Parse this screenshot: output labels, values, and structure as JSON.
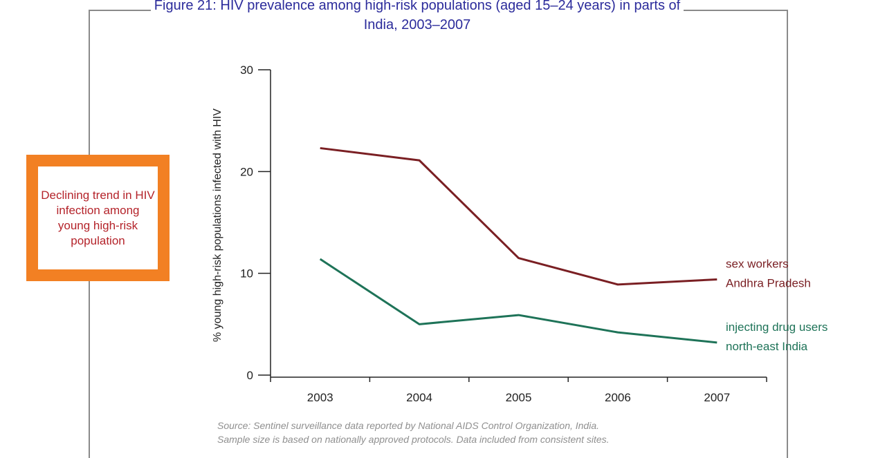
{
  "figure": {
    "title": "Figure 21: HIV prevalence among high-risk populations (aged 15–24 years) in parts of India, 2003–2007",
    "callout": "Declining trend in HIV infection among young high-risk population",
    "source_line1": "Source: Sentinel surveillance data reported by National AIDS Control Organization, India.",
    "source_line2": "Sample size is based on nationally approved protocols. Data included from consistent sites."
  },
  "chart_data": {
    "type": "line",
    "title": "Figure 21: HIV prevalence among high-risk populations (aged 15–24 years) in parts of India, 2003–2007",
    "xlabel": "",
    "ylabel": "% young high-risk populations infected with HIV",
    "ylim": [
      0,
      30
    ],
    "yticks": [
      0,
      10,
      20,
      30
    ],
    "categories": [
      "2003",
      "2004",
      "2005",
      "2006",
      "2007"
    ],
    "grid": false,
    "series": [
      {
        "label_line1": "sex workers",
        "label_line2": "Andhra Pradesh",
        "color": "#7a1f23",
        "values": [
          22.3,
          21.1,
          11.5,
          8.9,
          9.4
        ]
      },
      {
        "label_line1": "injecting drug users",
        "label_line2": "north-east India",
        "color": "#1e7358",
        "values": [
          11.4,
          5.0,
          5.9,
          4.2,
          3.2
        ]
      }
    ]
  }
}
